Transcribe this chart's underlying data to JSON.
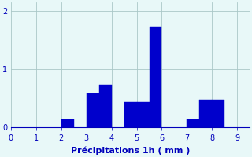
{
  "bar_lefts": [
    2.0,
    3.0,
    3.5,
    4.5,
    5.0,
    5.5,
    7.0,
    7.5,
    8.0
  ],
  "bar_heights": [
    0.14,
    0.58,
    0.73,
    0.44,
    0.44,
    1.73,
    0.14,
    0.48,
    0.48
  ],
  "bar_width": 0.5,
  "bar_color": "#0000cc",
  "bar_edgecolor": "#0000cc",
  "bg_color": "#e8f8f8",
  "xlabel": "Précipitations 1h ( mm )",
  "xlabel_color": "#0000bb",
  "xlim": [
    0,
    9.5
  ],
  "ylim": [
    0,
    2.15
  ],
  "xticks": [
    0,
    1,
    2,
    3,
    4,
    5,
    6,
    7,
    8,
    9
  ],
  "yticks": [
    0,
    1,
    2
  ],
  "grid_color": "#aac8c8",
  "tick_color": "#0000bb",
  "tick_fontsize": 7,
  "xlabel_fontsize": 8,
  "fig_bg_color": "#e8f8f8"
}
